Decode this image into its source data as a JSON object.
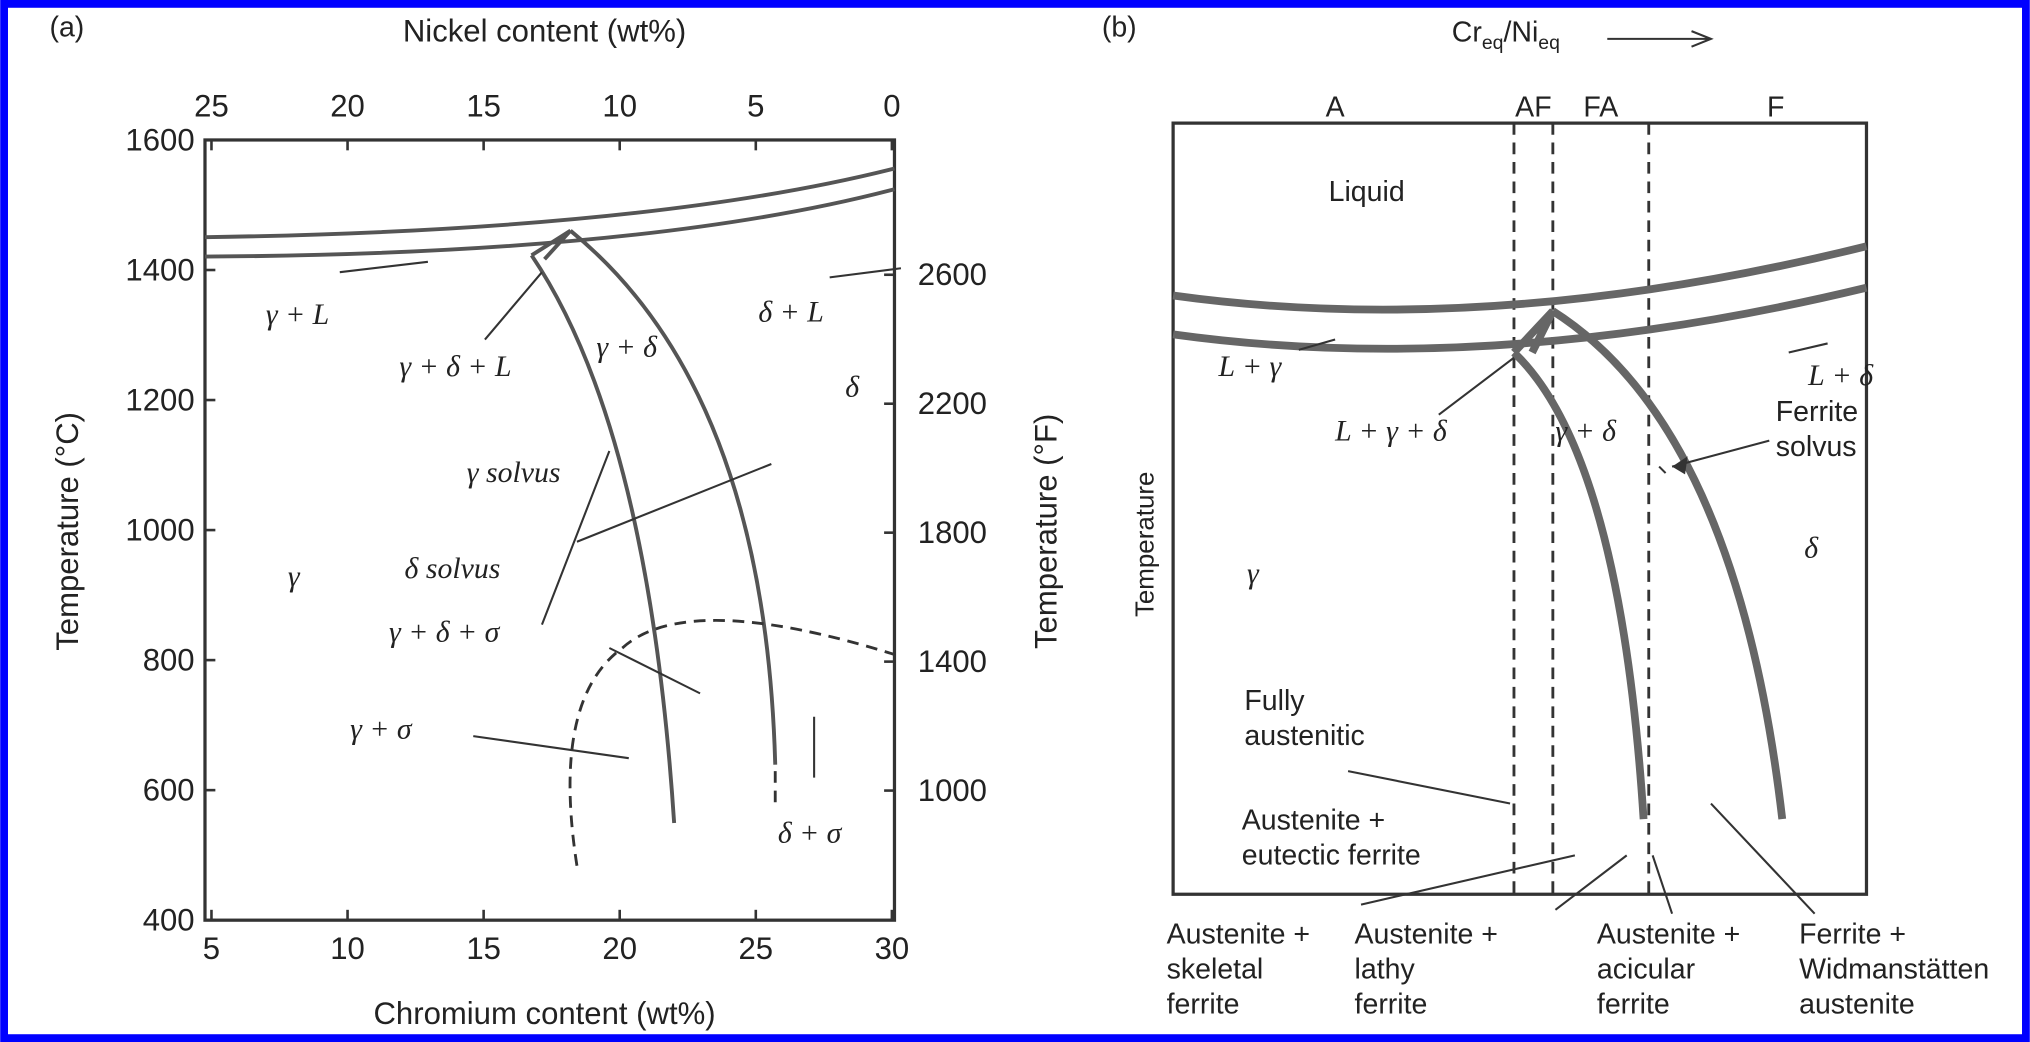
{
  "panel_a": {
    "label": "(a)",
    "top_axis_title": "Nickel content (wt%)",
    "top_ticks": [
      25,
      20,
      15,
      10,
      5,
      0
    ],
    "left_axis_title": "Temperature (°C)",
    "left_ticks": [
      1600,
      1400,
      1200,
      1000,
      800,
      600,
      400
    ],
    "right_axis_title": "Temperature (°F)",
    "right_ticks": [
      2600,
      2200,
      1800,
      1400,
      1000
    ],
    "bottom_axis_title": "Chromium content (wt%)",
    "bottom_ticks": [
      5,
      10,
      15,
      20,
      25,
      30
    ],
    "regions": [
      "γ + L",
      "δ + L",
      "γ + δ + L",
      "γ + δ",
      "δ",
      "γ solvus",
      "δ solvus",
      "γ",
      "γ + δ + σ",
      "γ + σ",
      "δ + σ"
    ]
  },
  "panel_b": {
    "label": "(b)",
    "ratio_label": [
      "Cr",
      "eq",
      "/Ni",
      "eq"
    ],
    "zones": [
      "A",
      "AF",
      "FA",
      "F"
    ],
    "axis_title": "Temperature",
    "regions": [
      "Liquid",
      "L + γ",
      "L + δ",
      "L + γ + δ",
      "γ + δ",
      "δ",
      "γ"
    ],
    "ferrite_solvus": [
      "Ferrite",
      "solvus"
    ],
    "fully_austenitic": [
      "Fully",
      "austenitic"
    ],
    "eutectic": [
      "Austenite +",
      "eutectic ferrite"
    ],
    "bottom_labels": [
      [
        "Austenite +",
        "skeletal",
        "ferrite"
      ],
      [
        "Austenite +",
        "lathy",
        "ferrite"
      ],
      [
        "Austenite +",
        "acicular",
        "ferrite"
      ],
      [
        "Ferrite +",
        "Widmanstätten",
        "austenite"
      ]
    ]
  }
}
